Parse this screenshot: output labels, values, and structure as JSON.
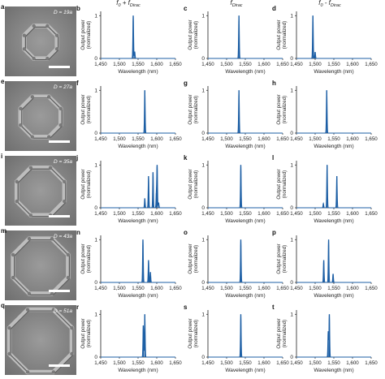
{
  "colors": {
    "trace": "#1d5fa5",
    "axis": "#222222"
  },
  "column_headers": [
    "f_0 + f_Dirac",
    "f_Dirac",
    "f_0 - f_Dirac"
  ],
  "rows": [
    {
      "sem_label": "a",
      "d_label": "D = 19a",
      "panels": [
        {
          "label": "b",
          "peaks": [
            [
              1537,
              1.0
            ],
            [
              1541,
              0.16
            ]
          ]
        },
        {
          "label": "c",
          "peaks": [
            [
              1533,
              1.0
            ]
          ]
        },
        {
          "label": "d",
          "peaks": [
            [
              1494,
              1.0
            ],
            [
              1500,
              0.15
            ]
          ]
        }
      ]
    },
    {
      "sem_label": "e",
      "d_label": "D = 27a",
      "panels": [
        {
          "label": "f",
          "peaks": [
            [
              1568,
              1.0
            ]
          ]
        },
        {
          "label": "g",
          "peaks": [
            [
              1533,
              1.0
            ]
          ]
        },
        {
          "label": "h",
          "peaks": [
            [
              1531,
              1.0
            ]
          ]
        }
      ]
    },
    {
      "sem_label": "i",
      "d_label": "D = 35a",
      "panels": [
        {
          "label": "j",
          "peaks": [
            [
              1568,
              0.22
            ],
            [
              1578,
              0.74
            ],
            [
              1590,
              0.83
            ],
            [
              1599,
              0.34
            ],
            [
              1601,
              1.0
            ],
            [
              1605,
              0.12
            ]
          ]
        },
        {
          "label": "k",
          "peaks": [
            [
              1538,
              1.0
            ]
          ]
        },
        {
          "label": "l",
          "peaks": [
            [
              1522,
              0.1
            ],
            [
              1532,
              1.0
            ],
            [
              1558,
              0.74
            ]
          ]
        }
      ]
    },
    {
      "sem_label": "m",
      "d_label": "D = 43a",
      "panels": [
        {
          "label": "n",
          "peaks": [
            [
              1563,
              1.0
            ],
            [
              1578,
              0.52
            ],
            [
              1583,
              0.24
            ]
          ]
        },
        {
          "label": "o",
          "peaks": [
            [
              1538,
              1.0
            ]
          ]
        },
        {
          "label": "p",
          "peaks": [
            [
              1523,
              0.52
            ],
            [
              1536,
              1.0
            ],
            [
              1548,
              0.2
            ]
          ]
        }
      ]
    },
    {
      "sem_label": "q",
      "d_label": "D = 51a",
      "panels": [
        {
          "label": "r",
          "peaks": [
            [
              1564,
              0.74
            ],
            [
              1568,
              1.0
            ]
          ]
        },
        {
          "label": "s",
          "peaks": [
            [
              1538,
              1.0
            ]
          ]
        },
        {
          "label": "t",
          "peaks": [
            [
              1535,
              0.6
            ],
            [
              1538,
              1.0
            ]
          ]
        }
      ]
    }
  ],
  "chart_data": {
    "type": "line",
    "title": "",
    "xlabel": "Wavelength (nm)",
    "ylabel": "Output power (normalized)",
    "xlim": [
      1450,
      1650
    ],
    "ylim": [
      0,
      1.1
    ],
    "xticks": [
      "1,450",
      "1,500",
      "1,550",
      "1,600",
      "1,650"
    ],
    "yticks": [
      "0",
      "1"
    ],
    "grid": false
  }
}
